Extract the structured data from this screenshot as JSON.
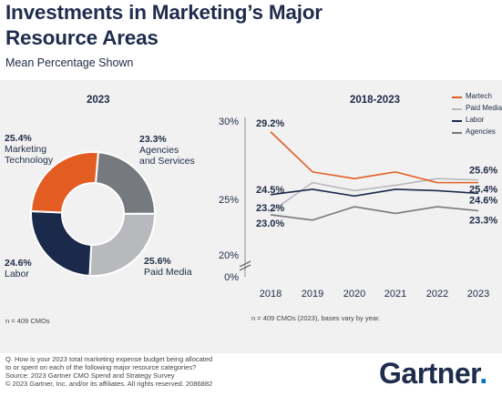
{
  "header": {
    "title_line1": "Investments in Marketing’s Major",
    "title_line2": "Resource Areas",
    "subtitle": "Mean Percentage Shown"
  },
  "colors": {
    "martech": "#e35d22",
    "paid_media": "#b7b9bc",
    "labor": "#1b2a4a",
    "agencies": "#76797d"
  },
  "chart_data": [
    {
      "type": "pie",
      "title": "2023",
      "donut": true,
      "slices": [
        {
          "label": "Agencies and Services",
          "label_line1": "Agencies",
          "label_line2": "and Services",
          "value": 23.3,
          "value_label": "23.3%",
          "color": "#76797d"
        },
        {
          "label": "Paid Media",
          "label_line1": "Paid Media",
          "label_line2": "",
          "value": 25.6,
          "value_label": "25.6%",
          "color": "#b7b9bc"
        },
        {
          "label": "Labor",
          "label_line1": "Labor",
          "label_line2": "",
          "value": 24.6,
          "value_label": "24.6%",
          "color": "#1b2a4a"
        },
        {
          "label": "Marketing Technology",
          "label_line1": "Marketing",
          "label_line2": "Technology",
          "value": 25.4,
          "value_label": "25.4%",
          "color": "#e35d22"
        }
      ],
      "note": "n = 409 CMOs"
    },
    {
      "type": "line",
      "title": "2018-2023",
      "x": [
        "2018",
        "2019",
        "2020",
        "2021",
        "2022",
        "2023"
      ],
      "y_ticks": [
        "30%",
        "25%",
        "20%",
        "0%"
      ],
      "y_tick_values": [
        30,
        25,
        20,
        0
      ],
      "y_axis_break": true,
      "legend_position": "top-right",
      "series": [
        {
          "name": "Martech",
          "color": "#e35d22",
          "values": [
            29.2,
            26.2,
            25.7,
            26.2,
            25.4,
            25.4
          ]
        },
        {
          "name": "Paid Media",
          "color": "#b7b9bc",
          "values": [
            23.2,
            25.4,
            24.8,
            25.2,
            25.7,
            25.6
          ]
        },
        {
          "name": "Labor",
          "color": "#1b2a4a",
          "values": [
            24.5,
            24.9,
            24.4,
            24.9,
            24.8,
            24.6
          ]
        },
        {
          "name": "Agencies",
          "color": "#76797d",
          "values": [
            23.0,
            22.6,
            23.6,
            23.1,
            23.6,
            23.3
          ]
        }
      ],
      "point_labels": [
        {
          "series": 0,
          "index": 0,
          "text": "29.2%"
        },
        {
          "series": 2,
          "index": 0,
          "text": "24.5%"
        },
        {
          "series": 1,
          "index": 0,
          "text": "23.2%"
        },
        {
          "series": 3,
          "index": 0,
          "text": "23.0%"
        },
        {
          "series": 1,
          "index": 5,
          "text": "25.6%"
        },
        {
          "series": 0,
          "index": 5,
          "text": "25.4%"
        },
        {
          "series": 2,
          "index": 5,
          "text": "24.6%"
        },
        {
          "series": 3,
          "index": 5,
          "text": "23.3%"
        }
      ],
      "note": "n = 409 CMOs (2023), bases vary by year."
    }
  ],
  "footer": {
    "line1": "Q. How is your 2023 total marketing expense budget being allocated",
    "line2": "to or spent on each of the following major resource categories?",
    "line3": "Source: 2023 Gartner CMO Spend and Strategy Survey",
    "line4": "© 2023 Gartner, Inc. and/or its affiliates. All rights reserved. 2086882",
    "logo": "Gartner",
    "logo_dot": "."
  }
}
